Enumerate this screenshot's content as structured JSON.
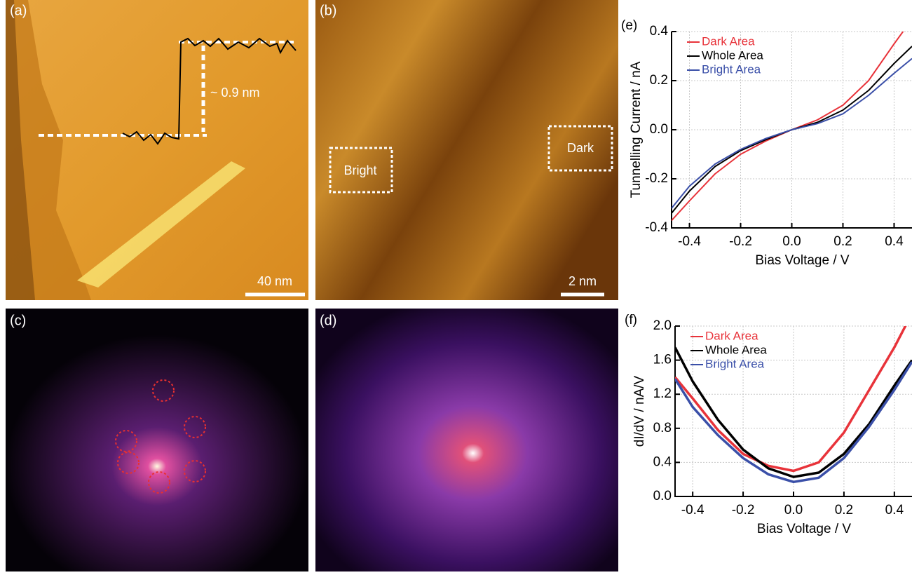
{
  "images": [
    {
      "label": "(a)",
      "step_height": "~ 0.9 nm",
      "scale_bar": "40 nm"
    },
    {
      "label": "(b)",
      "regions": [
        "Bright",
        "Dark"
      ],
      "scale_bar": "2 nm"
    },
    {
      "label": "(c)"
    },
    {
      "label": "(d)"
    }
  ],
  "chart_data": [
    {
      "type": "line",
      "panel_label": "(e)",
      "x_label": "Bias Voltage / V",
      "y_label": "Tunnelling Current / nA",
      "x": [
        -0.47,
        -0.4,
        -0.3,
        -0.2,
        -0.1,
        0,
        0.1,
        0.2,
        0.3,
        0.4,
        0.47
      ],
      "series": [
        {
          "name": "Dark Area",
          "color": "#e8333a",
          "values": [
            -0.37,
            -0.29,
            -0.18,
            -0.1,
            -0.045,
            0,
            0.04,
            0.1,
            0.2,
            0.35,
            0.45
          ]
        },
        {
          "name": "Whole Area",
          "color": "#000000",
          "values": [
            -0.34,
            -0.25,
            -0.15,
            -0.085,
            -0.04,
            0,
            0.03,
            0.08,
            0.16,
            0.27,
            0.34
          ]
        },
        {
          "name": "Bright Area",
          "color": "#3a4fa8",
          "values": [
            -0.32,
            -0.23,
            -0.14,
            -0.08,
            -0.035,
            0,
            0.025,
            0.065,
            0.14,
            0.23,
            0.29
          ]
        }
      ],
      "xlim": [
        -0.47,
        0.47
      ],
      "ylim": [
        -0.4,
        0.4
      ],
      "xticks": [
        -0.4,
        -0.2,
        {
          "value": 0,
          "label": "0.0"
        },
        0.2,
        0.4
      ],
      "yticks": [
        -0.4,
        -0.2,
        {
          "value": 0,
          "label": "0.0"
        },
        0.2,
        0.4
      ],
      "grid": true,
      "legend": "top-left"
    },
    {
      "type": "line",
      "panel_label": "(f)",
      "x_label": "Bias Voltage / V",
      "y_label": "dI/dV / nA/V",
      "x": [
        -0.47,
        -0.4,
        -0.3,
        -0.2,
        -0.1,
        0,
        0.1,
        0.2,
        0.3,
        0.4,
        0.47
      ],
      "series": [
        {
          "name": "Dark Area",
          "color": "#e8333a",
          "values": [
            1.4,
            1.15,
            0.78,
            0.5,
            0.36,
            0.3,
            0.4,
            0.75,
            1.25,
            1.75,
            2.15
          ]
        },
        {
          "name": "Whole Area",
          "color": "#000000",
          "values": [
            1.75,
            1.35,
            0.9,
            0.55,
            0.33,
            0.23,
            0.28,
            0.5,
            0.85,
            1.3,
            1.6
          ]
        },
        {
          "name": "Bright Area",
          "color": "#3a4fa8",
          "values": [
            1.38,
            1.05,
            0.72,
            0.45,
            0.26,
            0.17,
            0.22,
            0.45,
            0.82,
            1.25,
            1.58
          ]
        }
      ],
      "xlim": [
        -0.47,
        0.47
      ],
      "ylim": [
        0,
        2.0
      ],
      "xticks": [
        -0.4,
        -0.2,
        {
          "value": 0,
          "label": "0.0"
        },
        0.2,
        0.4
      ],
      "yticks": [
        {
          "value": 0,
          "label": "0.0"
        },
        0.4,
        0.8,
        1.2,
        1.6,
        {
          "value": 2,
          "label": "2.0"
        }
      ],
      "grid": true,
      "legend": "top-left"
    }
  ]
}
